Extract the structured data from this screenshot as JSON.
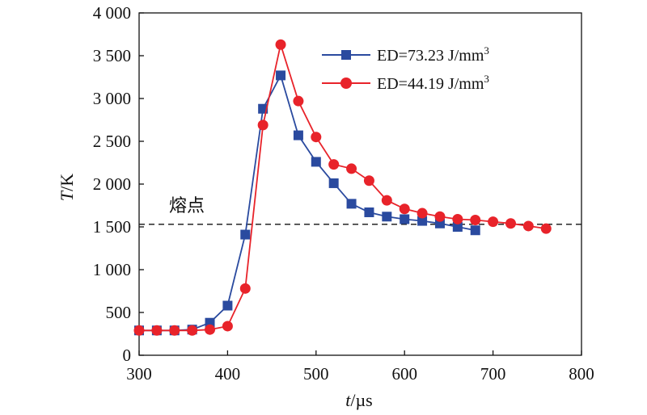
{
  "chart_data": {
    "type": "line",
    "xlabel_italic": "t",
    "xlabel_unit": "/µs",
    "ylabel_italic": "T",
    "ylabel_unit": "/K",
    "xlim": [
      300,
      800
    ],
    "ylim": [
      0,
      4000
    ],
    "x_ticks": [
      300,
      400,
      500,
      600,
      700,
      800
    ],
    "x_tick_labels": [
      "300",
      "400",
      "500",
      "600",
      "700",
      "800"
    ],
    "y_ticks": [
      0,
      500,
      1000,
      1500,
      2000,
      2500,
      3000,
      3500,
      4000
    ],
    "y_tick_labels": [
      "0",
      "500",
      "1 000",
      "1 500",
      "2 000",
      "2 500",
      "3 000",
      "3 500",
      "4 000"
    ],
    "grid": false,
    "legend_position": "top-right",
    "series": [
      {
        "name": "ED=73.23 J/mm",
        "name_sup": "3",
        "color": "#2a4a9f",
        "marker": "square",
        "x": [
          300,
          320,
          340,
          360,
          380,
          400,
          420,
          440,
          460,
          480,
          500,
          520,
          540,
          560,
          580,
          600,
          620,
          640,
          660,
          680
        ],
        "y": [
          290,
          290,
          290,
          300,
          380,
          580,
          1410,
          2880,
          3270,
          2570,
          2260,
          2010,
          1770,
          1670,
          1620,
          1590,
          1570,
          1540,
          1500,
          1460
        ]
      },
      {
        "name": "ED=44.19 J/mm",
        "name_sup": "3",
        "color": "#e8232a",
        "marker": "circle",
        "x": [
          300,
          320,
          340,
          360,
          380,
          400,
          420,
          440,
          460,
          480,
          500,
          520,
          540,
          560,
          580,
          600,
          620,
          640,
          660,
          680,
          700,
          720,
          740,
          760
        ],
        "y": [
          290,
          290,
          290,
          290,
          300,
          340,
          780,
          2690,
          3630,
          2970,
          2550,
          2230,
          2180,
          2040,
          1810,
          1710,
          1660,
          1620,
          1590,
          1580,
          1560,
          1540,
          1510,
          1480
        ]
      }
    ],
    "reference_line": {
      "y": 1530,
      "label": "熔点",
      "style": "dashed",
      "color": "#111111"
    }
  }
}
